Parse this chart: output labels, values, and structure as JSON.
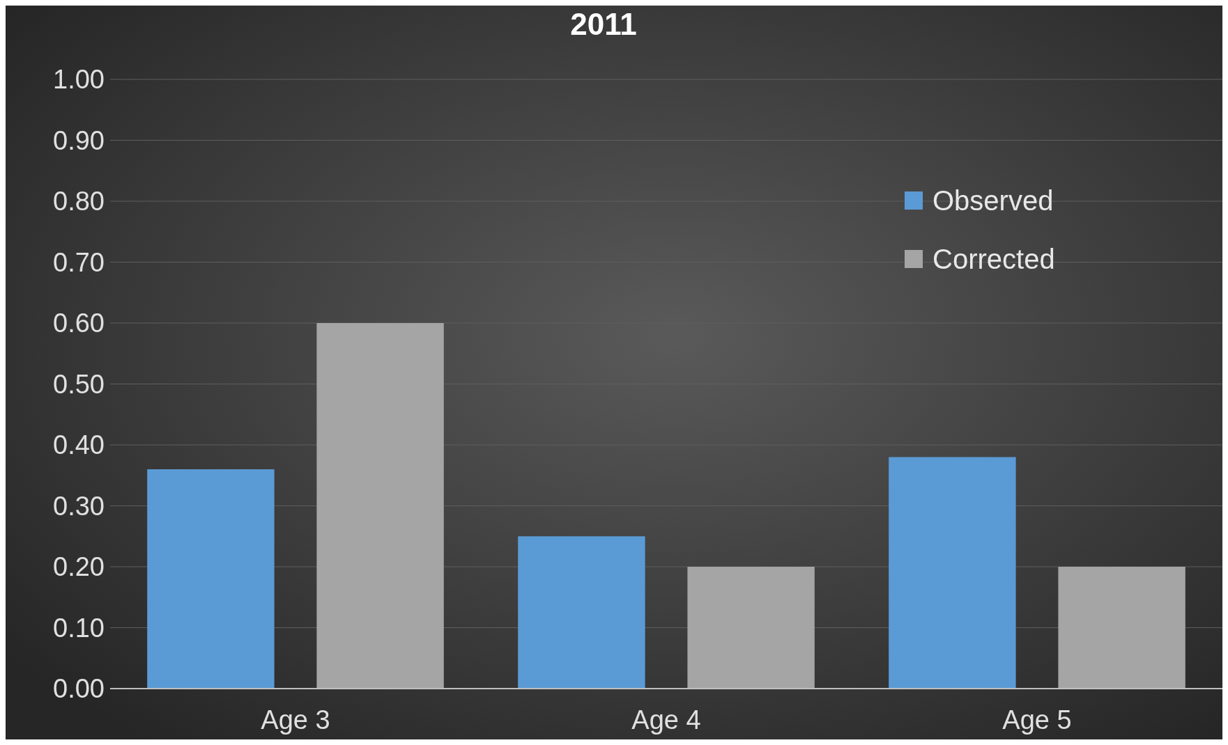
{
  "chart_data": {
    "type": "bar",
    "title": "2011",
    "categories": [
      "Age 3",
      "Age 4",
      "Age 5"
    ],
    "series": [
      {
        "name": "Observed",
        "color": "#5b9bd5",
        "values": [
          0.36,
          0.25,
          0.38
        ]
      },
      {
        "name": "Corrected",
        "color": "#a5a5a5",
        "values": [
          0.6,
          0.2,
          0.2
        ]
      }
    ],
    "ylim": [
      0,
      1
    ],
    "yticks": [
      {
        "value": 0,
        "label": "0.00"
      },
      {
        "value": 0.1,
        "label": "0.10"
      },
      {
        "value": 0.2,
        "label": "0.20"
      },
      {
        "value": 0.3,
        "label": "0.30"
      },
      {
        "value": 0.4,
        "label": "0.40"
      },
      {
        "value": 0.5,
        "label": "0.50"
      },
      {
        "value": 0.6,
        "label": "0.60"
      },
      {
        "value": 0.7,
        "label": "0.70"
      },
      {
        "value": 0.8,
        "label": "0.80"
      },
      {
        "value": 0.9,
        "label": "0.90"
      },
      {
        "value": 1,
        "label": "1.00"
      }
    ],
    "grid": "y",
    "legend": "top right"
  }
}
